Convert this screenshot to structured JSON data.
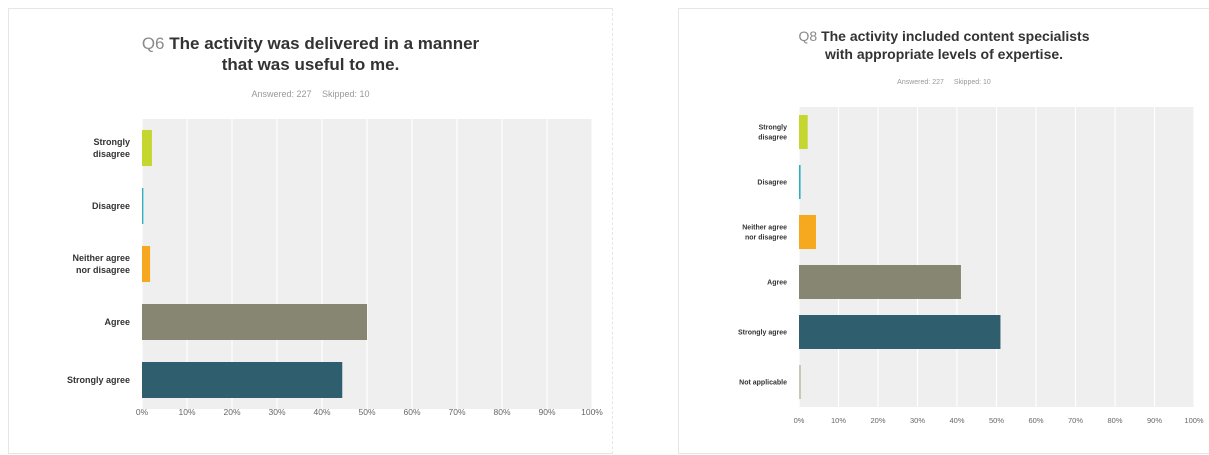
{
  "chart_data": [
    {
      "type": "bar",
      "orientation": "horizontal",
      "question_number": "Q6",
      "title": "The activity was delivered in a manner that was useful to me.",
      "title_lines": [
        "The activity was delivered in a manner",
        "that was useful to me."
      ],
      "answered": "Answered: 227",
      "skipped": "Skipped: 10",
      "categories": [
        "Strongly disagree",
        "Disagree",
        "Neither agree nor disagree",
        "Agree",
        "Strongly agree"
      ],
      "category_lines": [
        [
          "Strongly",
          "disagree"
        ],
        [
          "Disagree"
        ],
        [
          "Neither agree",
          "nor disagree"
        ],
        [
          "Agree"
        ],
        [
          "Strongly agree"
        ]
      ],
      "values": [
        2.2,
        0.3,
        1.8,
        50,
        44.5
      ],
      "colors": [
        "#c5d62e",
        "#2ab0c0",
        "#f6a81f",
        "#878672",
        "#2f5e6e"
      ],
      "xlim": [
        0,
        100
      ],
      "ticks": [
        "0%",
        "10%",
        "20%",
        "30%",
        "40%",
        "50%",
        "60%",
        "70%",
        "80%",
        "90%",
        "100%"
      ],
      "grid": true
    },
    {
      "type": "bar",
      "orientation": "horizontal",
      "question_number": "Q8",
      "title": "The activity included content specialists with appropriate levels of expertise.",
      "title_lines": [
        "The activity included content specialists",
        "with appropriate levels of expertise."
      ],
      "answered": "Answered: 227",
      "skipped": "Skipped: 10",
      "categories": [
        "Strongly disagree",
        "Disagree",
        "Neither agree nor disagree",
        "Agree",
        "Strongly agree",
        "Not applicable"
      ],
      "category_lines": [
        [
          "Strongly",
          "disagree"
        ],
        [
          "Disagree"
        ],
        [
          "Neither agree",
          "nor disagree"
        ],
        [
          "Agree"
        ],
        [
          "Strongly agree"
        ],
        [
          "Not applicable"
        ]
      ],
      "values": [
        2.2,
        0.4,
        4.3,
        41,
        51,
        0.5
      ],
      "colors": [
        "#c5d62e",
        "#2ab0c0",
        "#f6a81f",
        "#878672",
        "#2f5e6e",
        "#c7c7b8"
      ],
      "xlim": [
        0,
        100
      ],
      "ticks": [
        "0%",
        "10%",
        "20%",
        "30%",
        "40%",
        "50%",
        "60%",
        "70%",
        "80%",
        "90%",
        "100%"
      ],
      "grid": true
    }
  ]
}
